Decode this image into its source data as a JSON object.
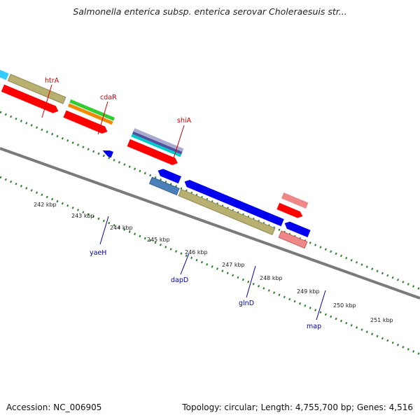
{
  "title": "Salmonella enterica subsp. enterica serovar Choleraesuis str...",
  "footer": {
    "accession": "Accession: NC_006905",
    "summary": "Topology: circular; Length: 4,755,700 bp; Genes: 4,516"
  },
  "scale_ticks": [
    {
      "label": "242 kbp",
      "kbp": 242
    },
    {
      "label": "243 kbp",
      "kbp": 243
    },
    {
      "label": "244 kbp",
      "kbp": 244
    },
    {
      "label": "245 kbp",
      "kbp": 245
    },
    {
      "label": "246 kbp",
      "kbp": 246
    },
    {
      "label": "247 kbp",
      "kbp": 247
    },
    {
      "label": "248 kbp",
      "kbp": 248
    },
    {
      "label": "249 kbp",
      "kbp": 249
    },
    {
      "label": "250 kbp",
      "kbp": 250
    },
    {
      "label": "251 kbp",
      "kbp": 251
    }
  ],
  "gene_labels": {
    "forward": [
      {
        "name": "htrA",
        "color": "#cc0000"
      },
      {
        "name": "cdaR",
        "color": "#cc0000"
      },
      {
        "name": "shiA",
        "color": "#cc0000"
      }
    ],
    "reverse": [
      {
        "name": "yaeH",
        "color": "#0000aa"
      },
      {
        "name": "dapD",
        "color": "#0000aa"
      },
      {
        "name": "glnD",
        "color": "#0000aa"
      },
      {
        "name": "map",
        "color": "#0000aa"
      }
    ]
  },
  "colors": {
    "backbone": "#8a8a8a",
    "tick_mark": "#2e7d2e",
    "cds_forward": "#ff0000",
    "cds_reverse": "#0000ee",
    "khaki": "#b8b070",
    "green": "#33cc33",
    "orange": "#f08a00",
    "salmon": "#ee8888",
    "steel_blue": "#4a80b8",
    "cyan": "#00cccc"
  }
}
